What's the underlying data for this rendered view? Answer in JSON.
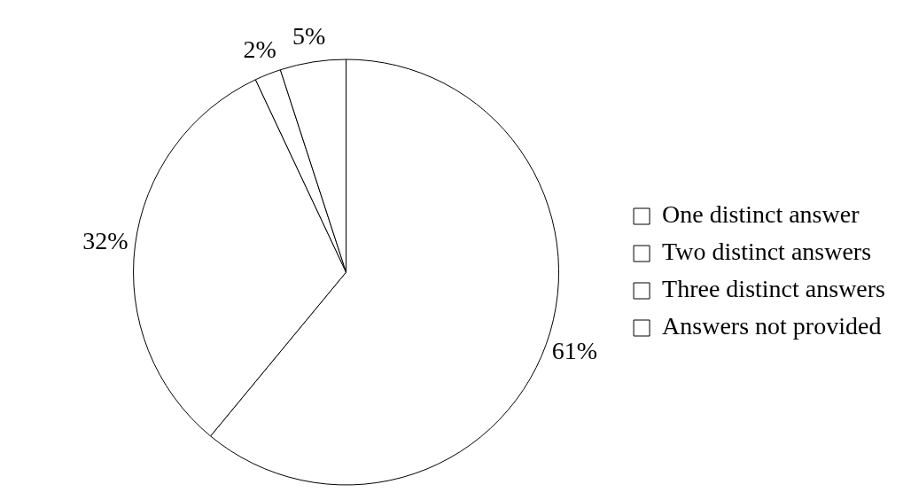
{
  "chart_data": {
    "type": "pie",
    "categories": [
      "One distinct answer",
      "Two distinct answers",
      "Three distinct answers",
      "Answers not provided"
    ],
    "values": [
      61,
      32,
      2,
      5
    ],
    "colors": [
      "#ffffff",
      "#ffffff",
      "#ffffff",
      "#ffffff"
    ],
    "value_labels": [
      "61%",
      "32%",
      "2%",
      "5%"
    ],
    "legend": "right"
  }
}
